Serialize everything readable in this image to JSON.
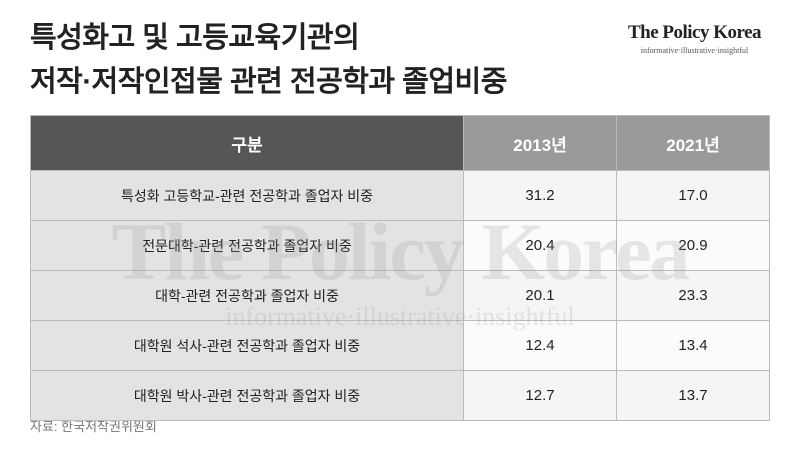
{
  "header": {
    "title_lines": [
      "특성화고 및 고등교육기관의",
      "저작·저작인접물 관련 전공학과 졸업비중"
    ],
    "logo": "The Policy Korea",
    "tagline": "informative·illustrative·insightful"
  },
  "table": {
    "columns": [
      "구분",
      "2013년",
      "2021년"
    ],
    "rows": [
      [
        "특성화 고등학교-관련 전공학과 졸업자 비중",
        "31.2",
        "17.0"
      ],
      [
        "전문대학-관련 전공학과 졸업자 비중",
        "20.4",
        "20.9"
      ],
      [
        "대학-관련 전공학과 졸업자 비중",
        "20.1",
        "23.3"
      ],
      [
        "대학원 석사-관련 전공학과 졸업자 비중",
        "12.4",
        "13.4"
      ],
      [
        "대학원 박사-관련 전공학과 졸업자 비중",
        "12.7",
        "13.7"
      ]
    ]
  },
  "watermark": {
    "logo": "The Policy Korea",
    "tagline": "informative·illustrative·insightful"
  },
  "source": "자료: 한국저작권위원회"
}
